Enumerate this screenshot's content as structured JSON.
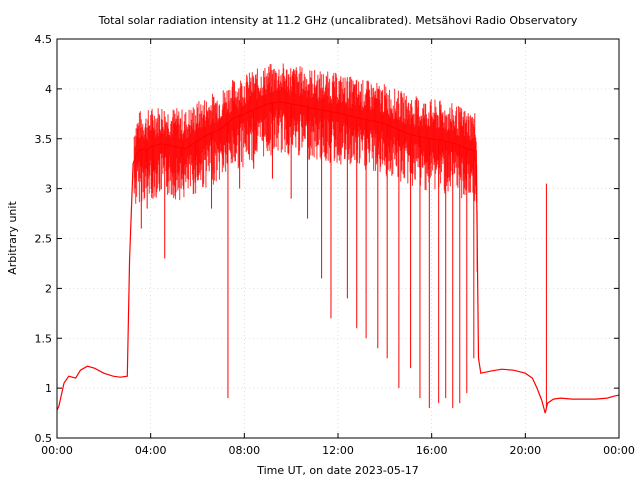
{
  "chart_data": {
    "type": "line",
    "title": "Total solar radiation intensity at 11.2 GHz (uncalibrated). Metsähovi Radio Observatory",
    "xlabel": "Time UT, on date 2023-05-17",
    "ylabel": "Arbitrary unit",
    "xlim_hours": [
      0,
      24
    ],
    "ylim": [
      0.5,
      4.5
    ],
    "x_ticks": [
      {
        "hour": 0,
        "label": "00:00"
      },
      {
        "hour": 4,
        "label": "04:00"
      },
      {
        "hour": 8,
        "label": "08:00"
      },
      {
        "hour": 12,
        "label": "12:00"
      },
      {
        "hour": 16,
        "label": "16:00"
      },
      {
        "hour": 20,
        "label": "20:00"
      },
      {
        "hour": 24,
        "label": "00:00"
      }
    ],
    "y_ticks": [
      "0.5",
      "1",
      "1.5",
      "2",
      "2.5",
      "3",
      "3.5",
      "4",
      "4.5"
    ],
    "grid": true,
    "legend": "none",
    "series": [
      {
        "color": "#ff0000",
        "hours": [
          0.0,
          0.08,
          0.3,
          0.5,
          0.8,
          1.0,
          1.3,
          1.6,
          2.0,
          2.4,
          2.7,
          3.0,
          3.1,
          3.25,
          3.4,
          3.6,
          3.8,
          4.0,
          4.5,
          5.0,
          5.5,
          6.0,
          6.5,
          7.0,
          7.5,
          8.0,
          8.5,
          9.0,
          9.5,
          10.0,
          10.5,
          11.0,
          11.5,
          12.0,
          12.5,
          13.0,
          13.5,
          14.0,
          14.5,
          15.0,
          15.5,
          16.0,
          16.5,
          17.0,
          17.5,
          17.9,
          18.0,
          18.1,
          18.5,
          19.0,
          19.5,
          20.0,
          20.3,
          20.5,
          20.7,
          20.85,
          20.95,
          21.2,
          21.5,
          22.0,
          22.5,
          23.0,
          23.5,
          23.8,
          24.0
        ],
        "values": [
          0.78,
          0.82,
          1.05,
          1.12,
          1.1,
          1.18,
          1.22,
          1.2,
          1.15,
          1.12,
          1.11,
          1.12,
          2.3,
          3.25,
          3.35,
          3.4,
          3.38,
          3.42,
          3.45,
          3.42,
          3.4,
          3.48,
          3.55,
          3.6,
          3.7,
          3.75,
          3.8,
          3.85,
          3.87,
          3.85,
          3.83,
          3.8,
          3.78,
          3.76,
          3.73,
          3.7,
          3.68,
          3.65,
          3.6,
          3.55,
          3.52,
          3.5,
          3.48,
          3.45,
          3.4,
          3.38,
          1.3,
          1.15,
          1.17,
          1.19,
          1.18,
          1.15,
          1.1,
          1.0,
          0.88,
          0.75,
          0.85,
          0.89,
          0.9,
          0.89,
          0.89,
          0.89,
          0.9,
          0.92,
          0.93
        ]
      }
    ],
    "dropouts": [
      {
        "hour": 3.6,
        "to": 2.6
      },
      {
        "hour": 3.85,
        "to": 2.8
      },
      {
        "hour": 4.1,
        "to": 2.9
      },
      {
        "hour": 4.6,
        "to": 2.3
      },
      {
        "hour": 5.3,
        "to": 3.0
      },
      {
        "hour": 5.9,
        "to": 3.1
      },
      {
        "hour": 6.6,
        "to": 2.8
      },
      {
        "hour": 7.3,
        "to": 0.9
      },
      {
        "hour": 7.8,
        "to": 3.0
      },
      {
        "hour": 8.4,
        "to": 3.2
      },
      {
        "hour": 9.2,
        "to": 3.1
      },
      {
        "hour": 10.0,
        "to": 2.9
      },
      {
        "hour": 10.7,
        "to": 2.7
      },
      {
        "hour": 11.3,
        "to": 2.1
      },
      {
        "hour": 11.7,
        "to": 1.7
      },
      {
        "hour": 12.4,
        "to": 1.9
      },
      {
        "hour": 12.8,
        "to": 1.6
      },
      {
        "hour": 13.2,
        "to": 1.5
      },
      {
        "hour": 13.7,
        "to": 1.4
      },
      {
        "hour": 14.1,
        "to": 1.3
      },
      {
        "hour": 14.6,
        "to": 1.0
      },
      {
        "hour": 15.1,
        "to": 1.2
      },
      {
        "hour": 15.5,
        "to": 0.9
      },
      {
        "hour": 15.9,
        "to": 0.8
      },
      {
        "hour": 16.3,
        "to": 0.85
      },
      {
        "hour": 16.6,
        "to": 0.9
      },
      {
        "hour": 16.9,
        "to": 0.8
      },
      {
        "hour": 17.2,
        "to": 0.85
      },
      {
        "hour": 17.5,
        "to": 0.95
      },
      {
        "hour": 17.8,
        "to": 1.3
      }
    ],
    "spikes": [
      {
        "hour": 20.9,
        "to": 3.05
      }
    ]
  }
}
